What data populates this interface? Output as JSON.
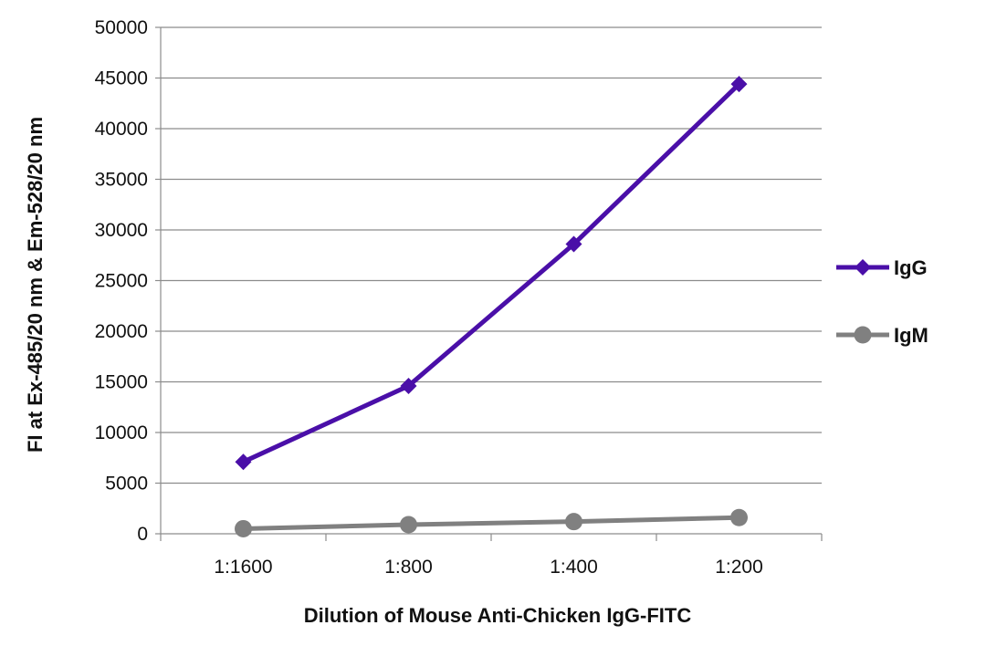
{
  "chart_data": {
    "type": "line",
    "title": "",
    "xlabel": "Dilution of Mouse Anti-Chicken IgG-FITC",
    "ylabel": "FI at Ex-485/20 nm & Em-528/20 nm",
    "categories": [
      "1:1600",
      "1:800",
      "1:400",
      "1:200"
    ],
    "ylim": [
      0,
      50000
    ],
    "yticks": [
      0,
      5000,
      10000,
      15000,
      20000,
      25000,
      30000,
      35000,
      40000,
      45000,
      50000
    ],
    "grid": true,
    "legend_position": "right",
    "series": [
      {
        "name": "IgG",
        "values": [
          7100,
          14600,
          28600,
          44400
        ],
        "color": "#4a0fa8",
        "marker": "diamond"
      },
      {
        "name": "IgM",
        "values": [
          500,
          900,
          1200,
          1600
        ],
        "color": "#808080",
        "marker": "circle"
      }
    ]
  }
}
